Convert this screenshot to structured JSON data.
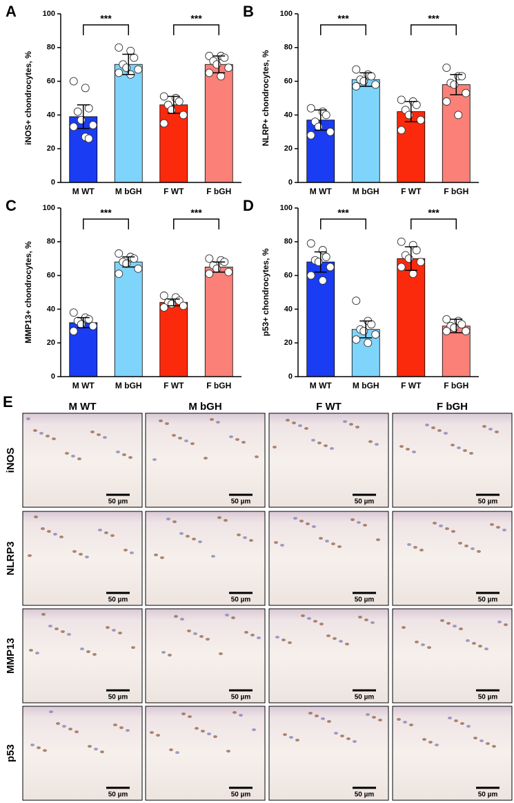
{
  "chart_data": [
    {
      "type": "bar",
      "panel": "A",
      "ylabel": "iNOS+ chondrocytes, %",
      "categories": [
        "M WT",
        "M bGH",
        "F WT",
        "F bGH"
      ],
      "values": [
        39,
        70,
        46,
        70
      ],
      "errors": [
        7,
        6,
        5,
        5
      ],
      "colors": [
        "#1a3cf2",
        "#7fd4fb",
        "#fb2a0c",
        "#fa8078"
      ],
      "points": [
        [
          60,
          56,
          44,
          42,
          37,
          34,
          33,
          27,
          26
        ],
        [
          80,
          78,
          74,
          70,
          68,
          67,
          65,
          64
        ],
        [
          51,
          50,
          48,
          46,
          43,
          40,
          35
        ],
        [
          75,
          75,
          74,
          72,
          70,
          68,
          65,
          63
        ]
      ],
      "ylim": [
        0,
        100
      ],
      "yticks": [
        0,
        20,
        40,
        60,
        80,
        100
      ],
      "significance": [
        {
          "label": "***",
          "pair": [
            0,
            1
          ]
        },
        {
          "label": "***",
          "pair": [
            2,
            3
          ]
        }
      ]
    },
    {
      "type": "bar",
      "panel": "B",
      "ylabel": "NLRP+ chondrocytes, %",
      "categories": [
        "M WT",
        "M bGH",
        "F WT",
        "F bGH"
      ],
      "values": [
        37,
        61,
        42,
        58
      ],
      "errors": [
        6,
        4,
        6,
        6
      ],
      "colors": [
        "#1a3cf2",
        "#7fd4fb",
        "#fb2a0c",
        "#fa8078"
      ],
      "points": [
        [
          44,
          42,
          40,
          36,
          33,
          30,
          28
        ],
        [
          67,
          64,
          63,
          61,
          60,
          58,
          57
        ],
        [
          49,
          48,
          46,
          43,
          40,
          37,
          31
        ],
        [
          68,
          63,
          63,
          59,
          58,
          53,
          48,
          40
        ]
      ],
      "ylim": [
        0,
        100
      ],
      "yticks": [
        0,
        20,
        40,
        60,
        80,
        100
      ],
      "significance": [
        {
          "label": "***",
          "pair": [
            0,
            1
          ]
        },
        {
          "label": "***",
          "pair": [
            2,
            3
          ]
        }
      ]
    },
    {
      "type": "bar",
      "panel": "C",
      "ylabel": "MMP13+ chondrocytes, %",
      "categories": [
        "M WT",
        "M bGH",
        "F WT",
        "F bGH"
      ],
      "values": [
        32,
        68,
        44,
        65
      ],
      "errors": [
        3,
        3,
        2,
        3
      ],
      "colors": [
        "#1a3cf2",
        "#7fd4fb",
        "#fb2a0c",
        "#fa8078"
      ],
      "points": [
        [
          38,
          35,
          34,
          33,
          31,
          30,
          27
        ],
        [
          73,
          71,
          70,
          68,
          67,
          64,
          61
        ],
        [
          48,
          47,
          45,
          44,
          43,
          42,
          41
        ],
        [
          70,
          69,
          68,
          66,
          64,
          62,
          61
        ]
      ],
      "ylim": [
        0,
        100
      ],
      "yticks": [
        0,
        20,
        40,
        60,
        80,
        100
      ],
      "significance": [
        {
          "label": "***",
          "pair": [
            0,
            1
          ]
        },
        {
          "label": "***",
          "pair": [
            2,
            3
          ]
        }
      ]
    },
    {
      "type": "bar",
      "panel": "D",
      "ylabel": "p53+ chondrocytes, %",
      "categories": [
        "M WT",
        "M bGH",
        "F WT",
        "F bGH"
      ],
      "values": [
        68,
        28,
        70,
        30
      ],
      "errors": [
        6,
        5,
        7,
        4
      ],
      "colors": [
        "#1a3cf2",
        "#7fd4fb",
        "#fb2a0c",
        "#fa8078"
      ],
      "points": [
        [
          79,
          75,
          71,
          69,
          68,
          65,
          60,
          57
        ],
        [
          45,
          33,
          31,
          28,
          27,
          25,
          22,
          20
        ],
        [
          80,
          78,
          75,
          72,
          70,
          68,
          65,
          61
        ],
        [
          34,
          33,
          31,
          30,
          29,
          27,
          27
        ]
      ],
      "ylim": [
        0,
        100
      ],
      "yticks": [
        0,
        20,
        40,
        60,
        80,
        100
      ],
      "significance": [
        {
          "label": "***",
          "pair": [
            0,
            1
          ]
        },
        {
          "label": "***",
          "pair": [
            2,
            3
          ]
        }
      ]
    }
  ],
  "panel_e": {
    "panel": "E",
    "columns": [
      "M WT",
      "M bGH",
      "F WT",
      "F bGH"
    ],
    "rows": [
      "iNOS",
      "NLRP3",
      "MMP13",
      "p53"
    ],
    "scale_bar": "50 µm"
  }
}
